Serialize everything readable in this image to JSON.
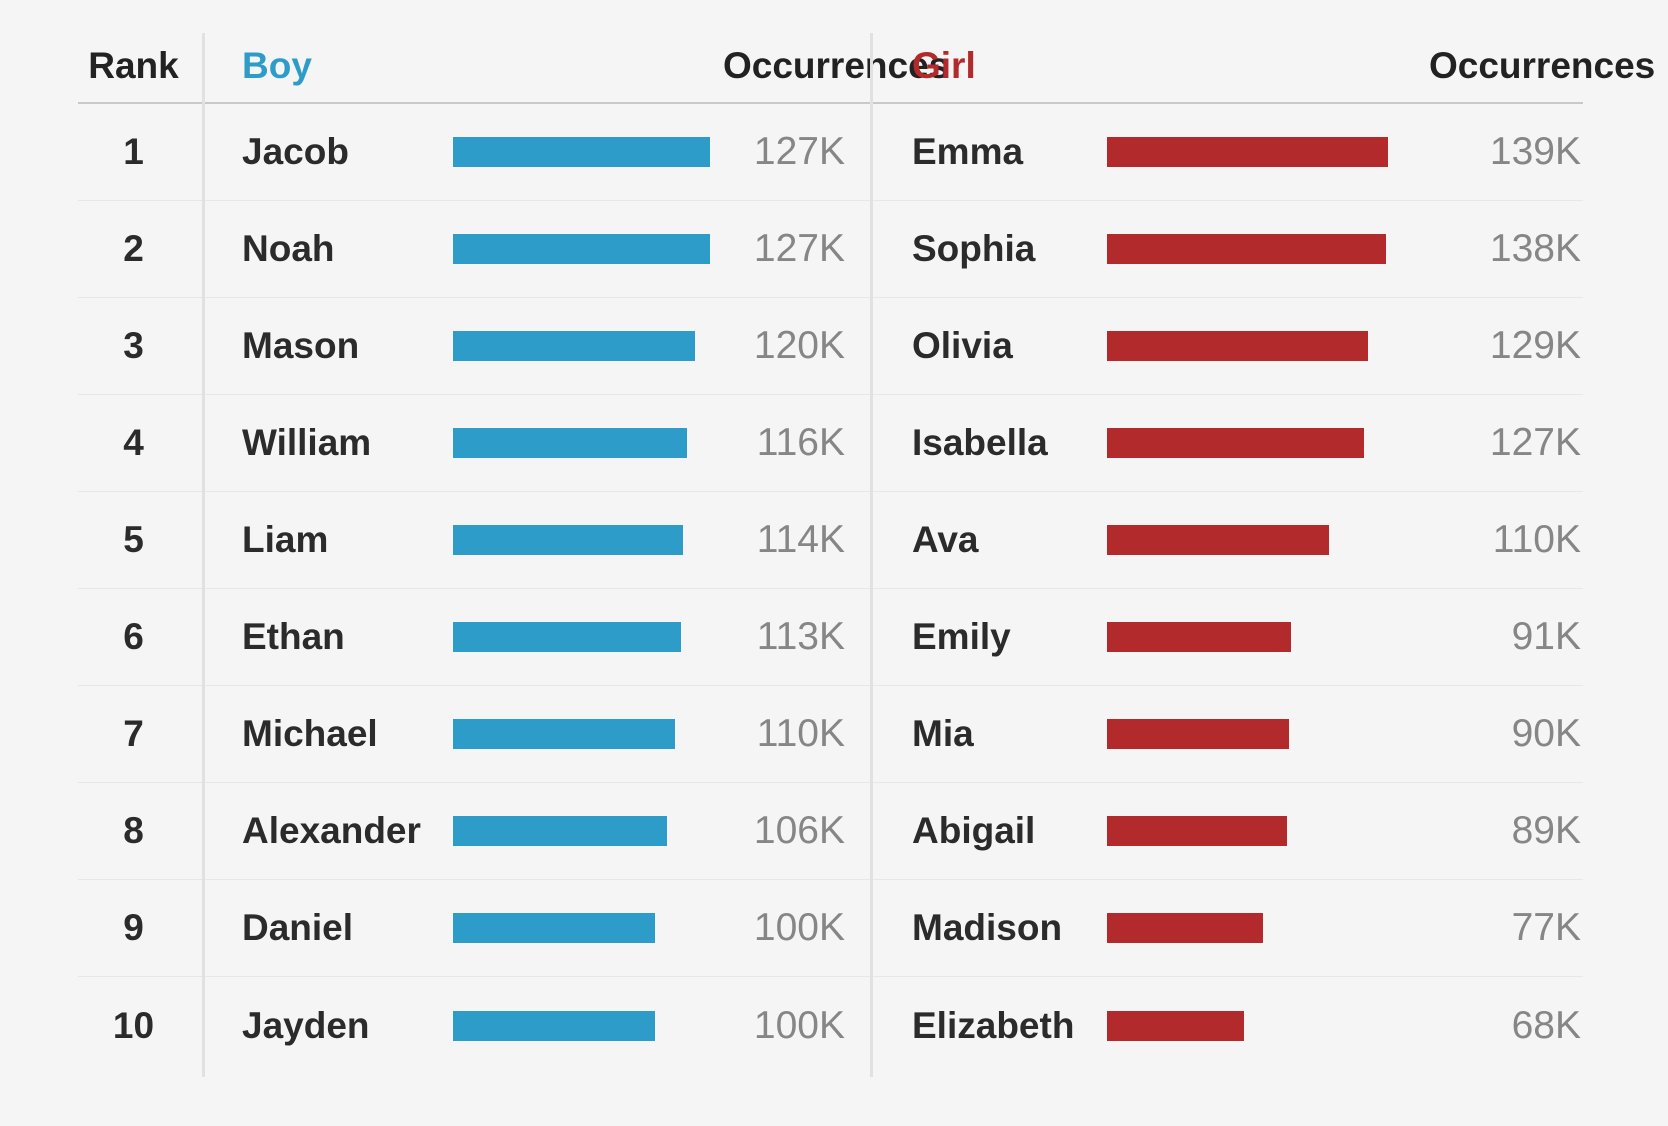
{
  "colors": {
    "boy_accent": "#2E9CC9",
    "girl_accent": "#B32A2C",
    "background": "#f5f5f5",
    "name_text": "#2b2b2b",
    "value_text": "#868686"
  },
  "header": {
    "rank_label": "Rank",
    "boy_label": "Boy",
    "boy_occurrences_label": "Occurrences",
    "girl_label": "Girl",
    "girl_occurrences_label": "Occurrences"
  },
  "rows": [
    {
      "rank": "1",
      "boy": {
        "name": "Jacob",
        "value_k": 127,
        "occurrences": "127K"
      },
      "girl": {
        "name": "Emma",
        "value_k": 139,
        "occurrences": "139K"
      }
    },
    {
      "rank": "2",
      "boy": {
        "name": "Noah",
        "value_k": 127,
        "occurrences": "127K"
      },
      "girl": {
        "name": "Sophia",
        "value_k": 138,
        "occurrences": "138K"
      }
    },
    {
      "rank": "3",
      "boy": {
        "name": "Mason",
        "value_k": 120,
        "occurrences": "120K"
      },
      "girl": {
        "name": "Olivia",
        "value_k": 129,
        "occurrences": "129K"
      }
    },
    {
      "rank": "4",
      "boy": {
        "name": "William",
        "value_k": 116,
        "occurrences": "116K"
      },
      "girl": {
        "name": "Isabella",
        "value_k": 127,
        "occurrences": "127K"
      }
    },
    {
      "rank": "5",
      "boy": {
        "name": "Liam",
        "value_k": 114,
        "occurrences": "114K"
      },
      "girl": {
        "name": "Ava",
        "value_k": 110,
        "occurrences": "110K"
      }
    },
    {
      "rank": "6",
      "boy": {
        "name": "Ethan",
        "value_k": 113,
        "occurrences": "113K"
      },
      "girl": {
        "name": "Emily",
        "value_k": 91,
        "occurrences": "91K"
      }
    },
    {
      "rank": "7",
      "boy": {
        "name": "Michael",
        "value_k": 110,
        "occurrences": "110K"
      },
      "girl": {
        "name": "Mia",
        "value_k": 90,
        "occurrences": "90K"
      }
    },
    {
      "rank": "8",
      "boy": {
        "name": "Alexander",
        "value_k": 106,
        "occurrences": "106K"
      },
      "girl": {
        "name": "Abigail",
        "value_k": 89,
        "occurrences": "89K"
      }
    },
    {
      "rank": "9",
      "boy": {
        "name": "Daniel",
        "value_k": 100,
        "occurrences": "100K"
      },
      "girl": {
        "name": "Madison",
        "value_k": 77,
        "occurrences": "77K"
      }
    },
    {
      "rank": "10",
      "boy": {
        "name": "Jayden",
        "value_k": 100,
        "occurrences": "100K"
      },
      "girl": {
        "name": "Elizabeth",
        "value_k": 68,
        "occurrences": "68K"
      }
    }
  ],
  "chart_data": [
    {
      "type": "bar",
      "orientation": "horizontal",
      "title": "Boy",
      "ylabel": "Occurrences",
      "unit": "thousands",
      "color": "#2E9CC9",
      "categories": [
        "Jacob",
        "Noah",
        "Mason",
        "William",
        "Liam",
        "Ethan",
        "Michael",
        "Alexander",
        "Daniel",
        "Jayden"
      ],
      "values": [
        127,
        127,
        120,
        116,
        114,
        113,
        110,
        106,
        100,
        100
      ],
      "value_labels": [
        "127K",
        "127K",
        "120K",
        "116K",
        "114K",
        "113K",
        "110K",
        "106K",
        "100K",
        "100K"
      ],
      "ranks": [
        1,
        2,
        3,
        4,
        5,
        6,
        7,
        8,
        9,
        10
      ],
      "xlim": [
        0,
        139
      ],
      "grid": false,
      "legend": false
    },
    {
      "type": "bar",
      "orientation": "horizontal",
      "title": "Girl",
      "ylabel": "Occurrences",
      "unit": "thousands",
      "color": "#B32A2C",
      "categories": [
        "Emma",
        "Sophia",
        "Olivia",
        "Isabella",
        "Ava",
        "Emily",
        "Mia",
        "Abigail",
        "Madison",
        "Elizabeth"
      ],
      "values": [
        139,
        138,
        129,
        127,
        110,
        91,
        90,
        89,
        77,
        68
      ],
      "value_labels": [
        "139K",
        "138K",
        "129K",
        "127K",
        "110K",
        "91K",
        "90K",
        "89K",
        "77K",
        "68K"
      ],
      "ranks": [
        1,
        2,
        3,
        4,
        5,
        6,
        7,
        8,
        9,
        10
      ],
      "xlim": [
        0,
        139
      ],
      "grid": false,
      "legend": false
    }
  ]
}
